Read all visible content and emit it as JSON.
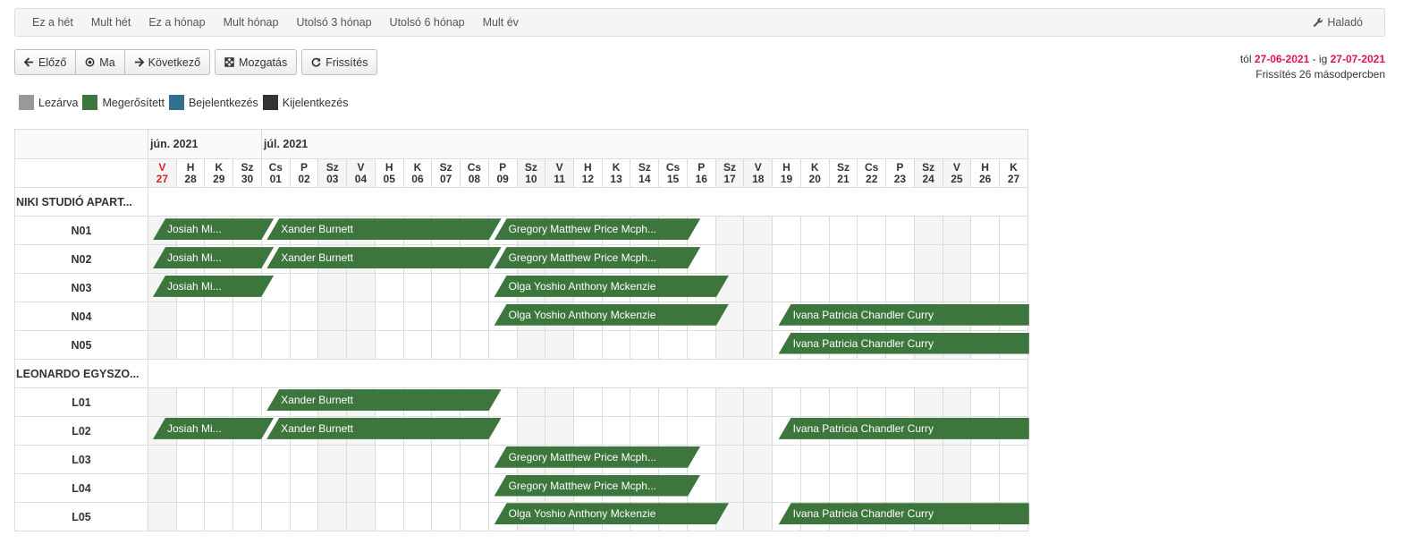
{
  "ranges": [
    "Ez a hét",
    "Mult hét",
    "Ez a hónap",
    "Mult hónap",
    "Utolsó 3 hónap",
    "Utolsó 6 hónap",
    "Mult év"
  ],
  "advanced_label": "Haladó",
  "toolbar": {
    "prev": "Előző",
    "today": "Ma",
    "next": "Következő",
    "move": "Mozgatás",
    "refresh": "Frissítés"
  },
  "daterange": {
    "from_label": "tól",
    "from": "27-06-2021",
    "sep": "- ig",
    "to": "27-07-2021",
    "refresh_note": "Frissítés 26 másodpercben"
  },
  "legend": [
    {
      "label": "Lezárva",
      "color": "#999999"
    },
    {
      "label": "Megerősített",
      "color": "#3c763d"
    },
    {
      "label": "Bejelentkezés",
      "color": "#31708f"
    },
    {
      "label": "Kijelentkezés",
      "color": "#333333"
    }
  ],
  "months": [
    {
      "label": "jún. 2021",
      "span": 4
    },
    {
      "label": "júl. 2021",
      "span": 27
    }
  ],
  "days": [
    {
      "w": "V",
      "d": "27",
      "we": true,
      "today": true
    },
    {
      "w": "H",
      "d": "28"
    },
    {
      "w": "K",
      "d": "29"
    },
    {
      "w": "Sz",
      "d": "30"
    },
    {
      "w": "Cs",
      "d": "01"
    },
    {
      "w": "P",
      "d": "02"
    },
    {
      "w": "Sz",
      "d": "03",
      "we": true
    },
    {
      "w": "V",
      "d": "04",
      "we": true
    },
    {
      "w": "H",
      "d": "05"
    },
    {
      "w": "K",
      "d": "06"
    },
    {
      "w": "Sz",
      "d": "07"
    },
    {
      "w": "Cs",
      "d": "08"
    },
    {
      "w": "P",
      "d": "09"
    },
    {
      "w": "Sz",
      "d": "10",
      "we": true
    },
    {
      "w": "V",
      "d": "11",
      "we": true
    },
    {
      "w": "H",
      "d": "12"
    },
    {
      "w": "K",
      "d": "13"
    },
    {
      "w": "Sz",
      "d": "14"
    },
    {
      "w": "Cs",
      "d": "15"
    },
    {
      "w": "P",
      "d": "16"
    },
    {
      "w": "Sz",
      "d": "17",
      "we": true
    },
    {
      "w": "V",
      "d": "18",
      "we": true
    },
    {
      "w": "H",
      "d": "19"
    },
    {
      "w": "K",
      "d": "20"
    },
    {
      "w": "Sz",
      "d": "21"
    },
    {
      "w": "Cs",
      "d": "22"
    },
    {
      "w": "P",
      "d": "23"
    },
    {
      "w": "Sz",
      "d": "24",
      "we": true
    },
    {
      "w": "V",
      "d": "25",
      "we": true
    },
    {
      "w": "H",
      "d": "26"
    },
    {
      "w": "K",
      "d": "27"
    }
  ],
  "rows": [
    {
      "type": "group",
      "name": "NIKI STUDIÓ APART..."
    },
    {
      "type": "room",
      "name": "N01",
      "bookings": [
        {
          "guest": "Josiah Mi...",
          "start": 0,
          "end": 4
        },
        {
          "guest": "Xander Burnett",
          "start": 4,
          "end": 12
        },
        {
          "guest": "Gregory Matthew Price Mcph...",
          "start": 12,
          "end": 19
        }
      ]
    },
    {
      "type": "room",
      "name": "N02",
      "bookings": [
        {
          "guest": "Josiah Mi...",
          "start": 0,
          "end": 4
        },
        {
          "guest": "Xander Burnett",
          "start": 4,
          "end": 12
        },
        {
          "guest": "Gregory Matthew Price Mcph...",
          "start": 12,
          "end": 19
        }
      ]
    },
    {
      "type": "room",
      "name": "N03",
      "bookings": [
        {
          "guest": "Josiah Mi...",
          "start": 0,
          "end": 4
        },
        {
          "guest": "Olga Yoshio Anthony Mckenzie",
          "start": 12,
          "end": 20
        }
      ]
    },
    {
      "type": "room",
      "name": "N04",
      "bookings": [
        {
          "guest": "Olga Yoshio Anthony Mckenzie",
          "start": 12,
          "end": 20
        },
        {
          "guest": "Ivana Patricia Chandler Curry",
          "start": 22,
          "end": 31,
          "open": true
        }
      ]
    },
    {
      "type": "room",
      "name": "N05",
      "bookings": [
        {
          "guest": "Ivana Patricia Chandler Curry",
          "start": 22,
          "end": 31,
          "open": true
        }
      ]
    },
    {
      "type": "group",
      "name": "LEONARDO EGYSZO..."
    },
    {
      "type": "room",
      "name": "L01",
      "bookings": [
        {
          "guest": "Xander Burnett",
          "start": 4,
          "end": 12
        }
      ]
    },
    {
      "type": "room",
      "name": "L02",
      "bookings": [
        {
          "guest": "Josiah Mi...",
          "start": 0,
          "end": 4
        },
        {
          "guest": "Xander Burnett",
          "start": 4,
          "end": 12
        },
        {
          "guest": "Ivana Patricia Chandler Curry",
          "start": 22,
          "end": 31,
          "open": true
        }
      ]
    },
    {
      "type": "room",
      "name": "L03",
      "bookings": [
        {
          "guest": "Gregory Matthew Price Mcph...",
          "start": 12,
          "end": 19
        }
      ]
    },
    {
      "type": "room",
      "name": "L04",
      "bookings": [
        {
          "guest": "Gregory Matthew Price Mcph...",
          "start": 12,
          "end": 19
        }
      ]
    },
    {
      "type": "room",
      "name": "L05",
      "bookings": [
        {
          "guest": "Olga Yoshio Anthony Mckenzie",
          "start": 12,
          "end": 20
        },
        {
          "guest": "Ivana Patricia Chandler Curry",
          "start": 22,
          "end": 31,
          "open": true
        }
      ]
    }
  ]
}
